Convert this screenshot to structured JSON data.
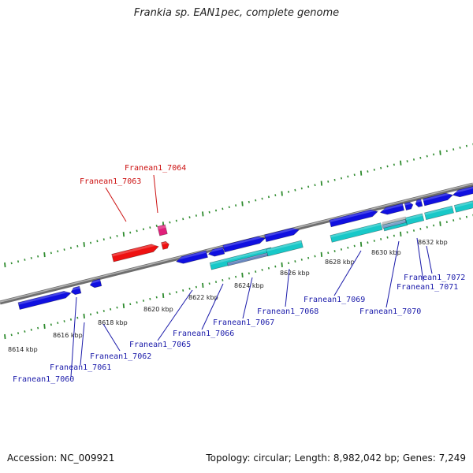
{
  "title": "Frankia sp. EAN1pec, complete genome",
  "footer": {
    "accession": "Accession: NC_009921",
    "summary": "Topology: circular; Length: 8,982,042 bp; Genes: 7,249"
  },
  "colors": {
    "background": "#ffffff",
    "backbone": "#7f7f7f",
    "tick_marks": "#2e8b2e",
    "gene_forward": "#1010e0",
    "gene_cds_row": "#18c8c8",
    "gene_highlight": "#ee1111",
    "gene_pink": "#e0207a",
    "label_default": "#1a1aaa",
    "label_highlight": "#cc1111"
  },
  "axis": {
    "unit": "kbp",
    "tick_labels": [
      "8614 kbp",
      "8616 kbp",
      "8618 kbp",
      "8620 kbp",
      "8622 kbp",
      "8624 kbp",
      "8626 kbp",
      "8628 kbp",
      "8630 kbp",
      "8632 kbp"
    ]
  },
  "genes": [
    {
      "name": "Franean1_7060",
      "highlight": false
    },
    {
      "name": "Franean1_7061",
      "highlight": false
    },
    {
      "name": "Franean1_7062",
      "highlight": false
    },
    {
      "name": "Franean1_7063",
      "highlight": true
    },
    {
      "name": "Franean1_7064",
      "highlight": true
    },
    {
      "name": "Franean1_7065",
      "highlight": false
    },
    {
      "name": "Franean1_7066",
      "highlight": false
    },
    {
      "name": "Franean1_7067",
      "highlight": false
    },
    {
      "name": "Franean1_7068",
      "highlight": false
    },
    {
      "name": "Franean1_7069",
      "highlight": false
    },
    {
      "name": "Franean1_7070",
      "highlight": false
    },
    {
      "name": "Franean1_7071",
      "highlight": false
    },
    {
      "name": "Franean1_7072",
      "highlight": false
    }
  ]
}
